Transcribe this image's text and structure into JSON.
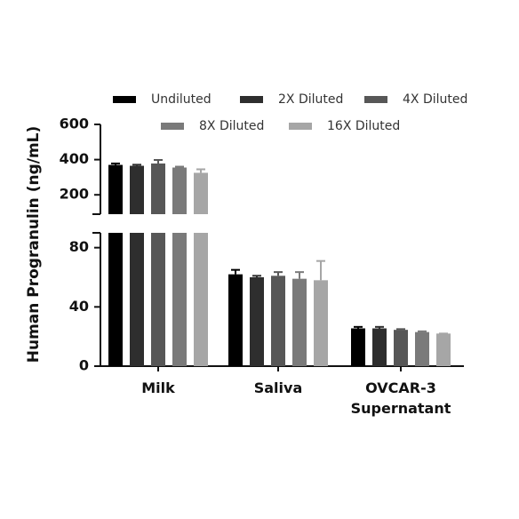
{
  "chart_data": {
    "type": "bar",
    "y_label": "Human Progranulin (ng/mL)",
    "categories": [
      "Milk",
      "Saliva",
      "OVCAR-3 Supernatant"
    ],
    "axis_segments": [
      {
        "ylim": [
          0,
          90
        ],
        "yticks": [
          0,
          40,
          80
        ]
      },
      {
        "ylim": [
          90,
          600
        ],
        "yticks": [
          200,
          400,
          600
        ]
      }
    ],
    "series": [
      {
        "name": "Undiluted",
        "color": "#000000",
        "values": [
          370,
          62,
          25.5
        ],
        "errors": [
          8,
          3,
          1
        ]
      },
      {
        "name": "2X Diluted",
        "color": "#2e2e2e",
        "values": [
          365,
          60,
          25.5
        ],
        "errors": [
          6,
          1,
          1
        ]
      },
      {
        "name": "4X Diluted",
        "color": "#575757",
        "values": [
          378,
          61,
          24.5
        ],
        "errors": [
          20,
          2.5,
          0.5
        ]
      },
      {
        "name": "8X Diluted",
        "color": "#7a7a7a",
        "values": [
          355,
          59,
          23
        ],
        "errors": [
          5,
          4.5,
          0.5
        ]
      },
      {
        "name": "16X Diluted",
        "color": "#a6a6a6",
        "values": [
          325,
          58,
          22
        ],
        "errors": [
          20,
          13,
          0
        ]
      }
    ]
  }
}
